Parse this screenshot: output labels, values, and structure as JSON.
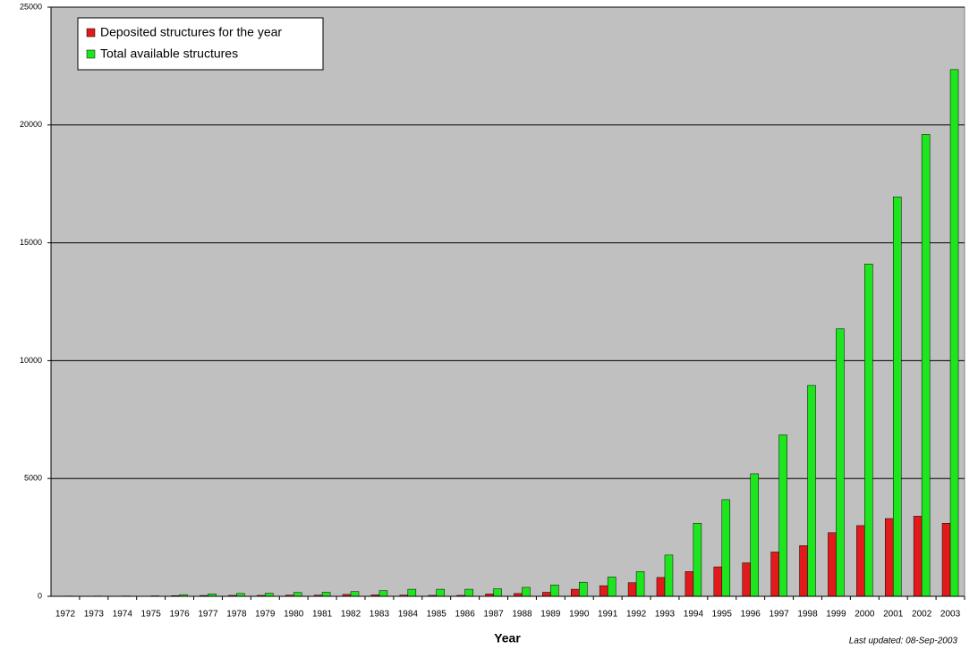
{
  "chart_data": {
    "type": "bar",
    "xlabel": "Year",
    "note": "Last updated: 08-Sep-2003",
    "categories": [
      "1972",
      "1973",
      "1974",
      "1975",
      "1976",
      "1977",
      "1978",
      "1979",
      "1980",
      "1981",
      "1982",
      "1983",
      "1984",
      "1985",
      "1986",
      "1987",
      "1988",
      "1989",
      "1990",
      "1991",
      "1992",
      "1993",
      "1994",
      "1995",
      "1996",
      "1997",
      "1998",
      "1999",
      "2000",
      "2001",
      "2002",
      "2003"
    ],
    "series": [
      {
        "name": "Deposited structures for the year",
        "color": "#e31a1c",
        "values": [
          1,
          1,
          3,
          2,
          28,
          35,
          40,
          40,
          50,
          50,
          80,
          60,
          50,
          40,
          40,
          100,
          120,
          170,
          300,
          450,
          580,
          800,
          1050,
          1250,
          1420,
          1880,
          2150,
          2700,
          3000,
          3300,
          3400,
          3100
        ]
      },
      {
        "name": "Total available structures",
        "color": "#1ee61e",
        "values": [
          13,
          13,
          15,
          20,
          70,
          100,
          120,
          130,
          160,
          170,
          200,
          240,
          300,
          300,
          300,
          320,
          380,
          480,
          600,
          820,
          1050,
          1750,
          3100,
          4100,
          5200,
          6850,
          8950,
          11350,
          14100,
          16950,
          19600,
          22350
        ]
      }
    ],
    "ylim": [
      0,
      25000
    ],
    "yticks": [
      0,
      5000,
      10000,
      15000,
      20000,
      25000
    ],
    "grid": true,
    "legend": "upper left"
  }
}
